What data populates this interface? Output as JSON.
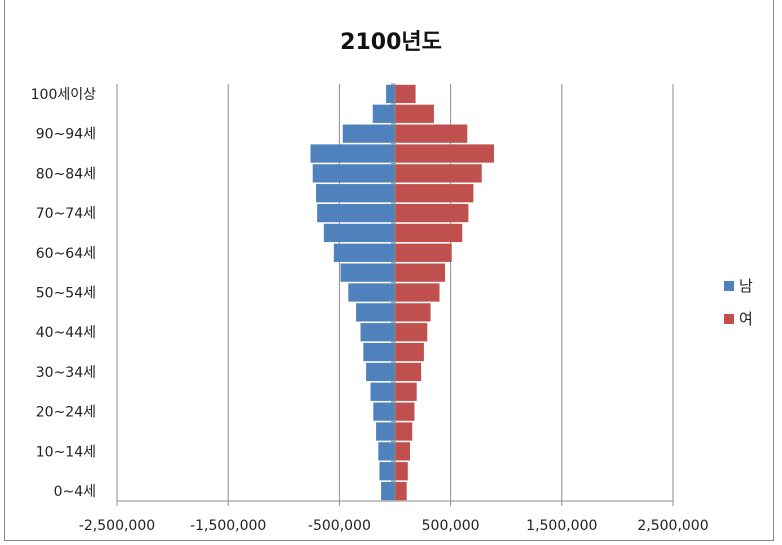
{
  "chart_data": {
    "type": "bar",
    "orientation": "horizontal",
    "title": "2100년도",
    "categories": [
      "0~4세",
      "5~9세",
      "10~14세",
      "15~19세",
      "20~24세",
      "25~29세",
      "30~34세",
      "35~39세",
      "40~44세",
      "45~49세",
      "50~54세",
      "55~59세",
      "60~64세",
      "65~69세",
      "70~74세",
      "75~79세",
      "80~84세",
      "85~89세",
      "90~94세",
      "95~99세",
      "100세이상"
    ],
    "category_labels_shown": [
      "0~4세",
      "10~14세",
      "20~24세",
      "30~34세",
      "40~44세",
      "50~54세",
      "60~64세",
      "70~74세",
      "80~84세",
      "90~94세",
      "100세이상"
    ],
    "series": [
      {
        "name": "남",
        "color": "#4F81BD",
        "values": [
          -125000,
          -140000,
          -150000,
          -170000,
          -195000,
          -220000,
          -260000,
          -285000,
          -310000,
          -350000,
          -420000,
          -490000,
          -550000,
          -640000,
          -700000,
          -710000,
          -740000,
          -760000,
          -470000,
          -200000,
          -80000
        ]
      },
      {
        "name": "여",
        "color": "#C0504D",
        "values": [
          105000,
          115000,
          135000,
          155000,
          175000,
          195000,
          235000,
          260000,
          290000,
          320000,
          400000,
          450000,
          510000,
          605000,
          660000,
          705000,
          780000,
          890000,
          650000,
          350000,
          185000
        ]
      }
    ],
    "x_ticks": [
      "-2,500,000",
      "-1,500,000",
      "-500,000",
      "500,000",
      "1,500,000",
      "2,500,000"
    ],
    "x_tick_values": [
      -2500000,
      -1500000,
      -500000,
      500000,
      1500000,
      2500000
    ],
    "xlim": [
      -2500000,
      2500000
    ],
    "grid": "vertical",
    "legend": "right"
  }
}
